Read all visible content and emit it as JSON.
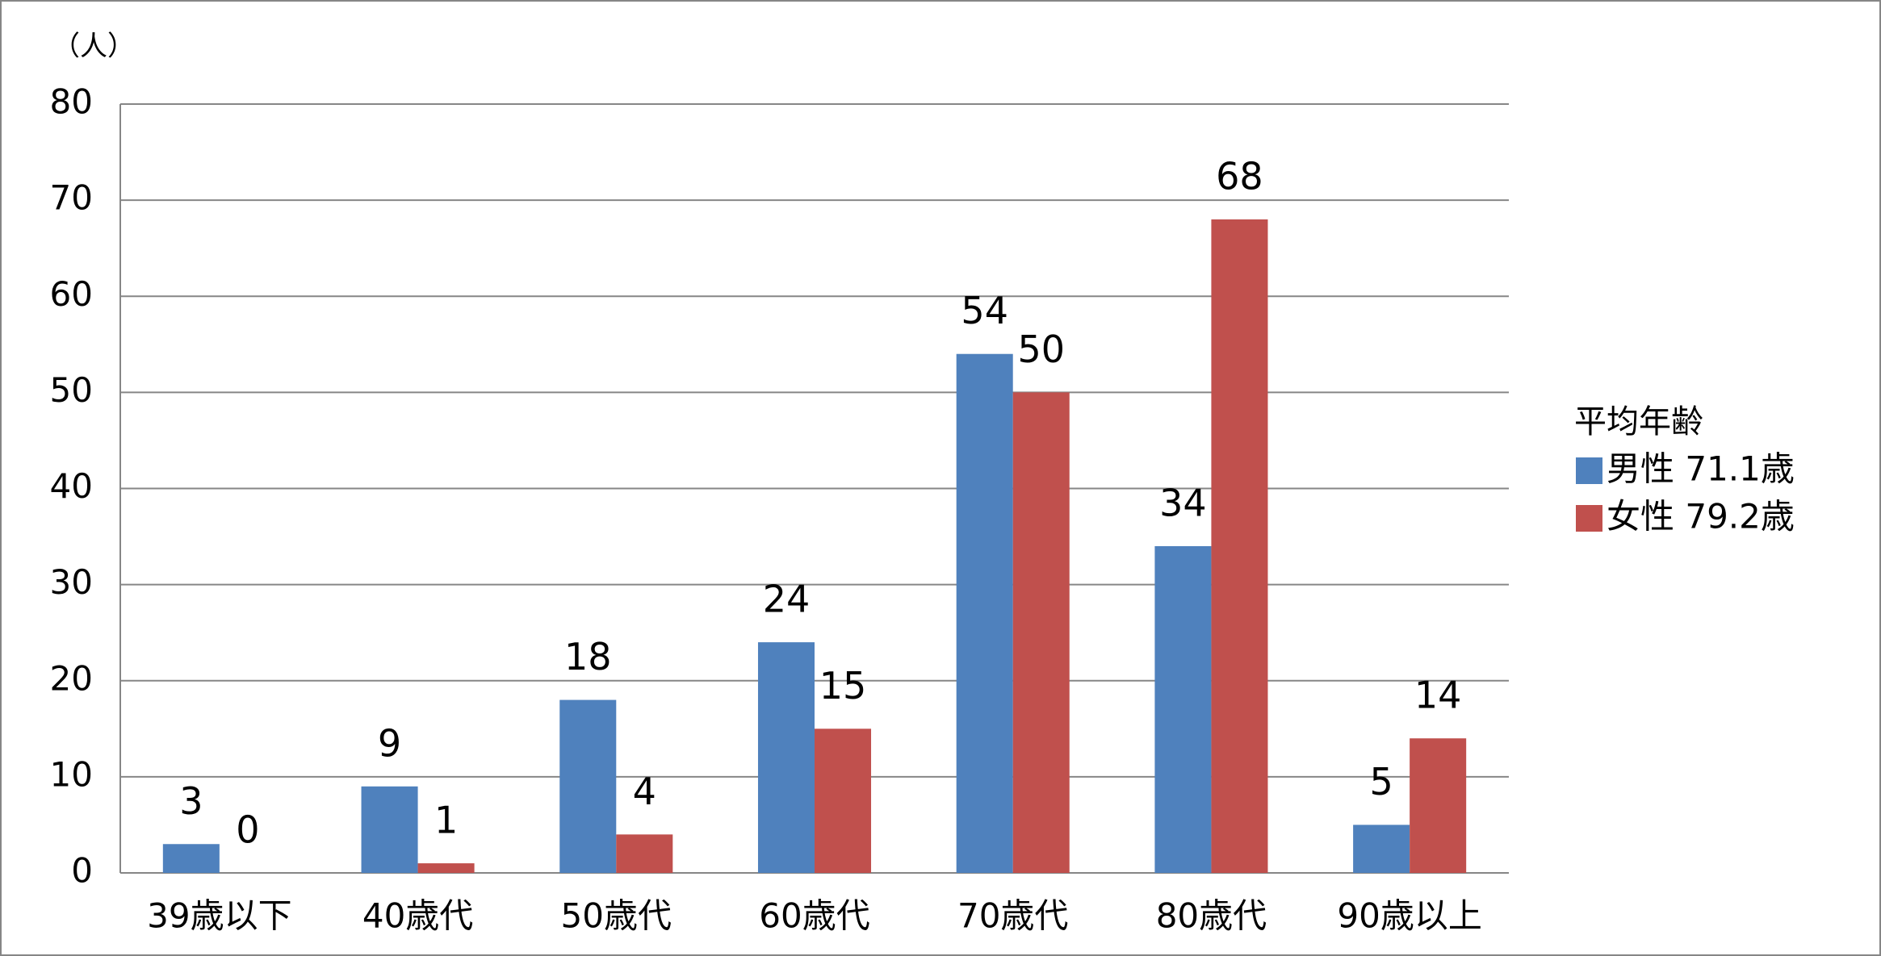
{
  "chart_data": {
    "type": "bar",
    "unit_label": "（人）",
    "categories": [
      "39歳以下",
      "40歳代",
      "50歳代",
      "60歳代",
      "70歳代",
      "80歳代",
      "90歳以上"
    ],
    "series": [
      {
        "name": "男性 71.1歳",
        "color": "#4f81bd",
        "values": [
          3,
          9,
          18,
          24,
          54,
          34,
          5
        ]
      },
      {
        "name": "女性 79.2歳",
        "color": "#c0504d",
        "values": [
          0,
          1,
          4,
          15,
          50,
          68,
          14
        ]
      }
    ],
    "legend_title": "平均年齢",
    "legend_position": "right",
    "ylim": [
      0,
      80
    ],
    "yticks": [
      0,
      10,
      20,
      30,
      40,
      50,
      60,
      70,
      80
    ],
    "grid": true
  }
}
